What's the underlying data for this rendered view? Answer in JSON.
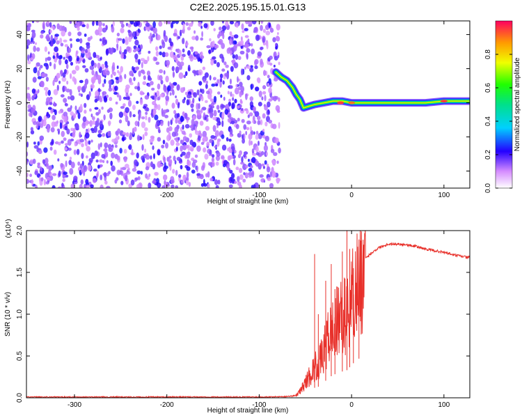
{
  "title": "C2E2.2025.195.15.01.G13",
  "colorbar": {
    "label": "Normalized spectral amplitude",
    "ticks": [
      "0.0",
      "0.2",
      "0.4",
      "0.6",
      "0.8"
    ]
  },
  "chart_data": [
    {
      "type": "heatmap",
      "xlabel": "Height of straight line (km)",
      "ylabel": "Frequency (Hz)",
      "xlim": [
        -352,
        128
      ],
      "ylim": [
        -50,
        48
      ],
      "xticks": [
        "-300",
        "-200",
        "-100",
        "0",
        "100"
      ],
      "yticks": [
        "-40",
        "-20",
        "0",
        "20",
        "40"
      ],
      "noise_region_x": [
        -352,
        -78
      ],
      "ridge": {
        "x": [
          -82,
          -76,
          -70,
          -64,
          -60,
          -56,
          -52,
          -46,
          -40,
          -30,
          -20,
          -10,
          0,
          20,
          40,
          60,
          80,
          100,
          128
        ],
        "y": [
          18,
          15,
          13,
          9,
          5,
          2,
          -3,
          -2,
          -1,
          0,
          1,
          1,
          0,
          0,
          0,
          0,
          0,
          1,
          1
        ]
      },
      "ridge_peaks": [
        {
          "x": -12,
          "y": 0,
          "v": 0.95
        },
        {
          "x": 0,
          "y": 0,
          "v": 0.9
        },
        {
          "x": 100,
          "y": 1,
          "v": 0.95
        }
      ]
    },
    {
      "type": "line",
      "xlabel": "Height of straight line (km)",
      "ylabel": "SNR (10 * v/v)",
      "scale_label": "(x10⁴)",
      "xlim": [
        -352,
        128
      ],
      "ylim": [
        0,
        2.0
      ],
      "xticks": [
        "-300",
        "-200",
        "-100",
        "0",
        "100"
      ],
      "yticks": [
        "0.0",
        "0.5",
        "1.0",
        "1.5",
        "2.0"
      ],
      "color": "#e8302a",
      "series": [
        {
          "x": [
            -352,
            -300,
            -200,
            -100,
            -70,
            -60,
            -55,
            -50,
            -45,
            -40,
            -35,
            -30,
            -25,
            -20,
            -15,
            -10,
            -5,
            0,
            5,
            10,
            20,
            30,
            40,
            50,
            60,
            70,
            80,
            90,
            100,
            110,
            120,
            128
          ],
          "y": [
            0.01,
            0.01,
            0.01,
            0.01,
            0.015,
            0.03,
            0.1,
            0.2,
            0.3,
            0.4,
            0.45,
            0.6,
            0.8,
            0.9,
            1.0,
            1.05,
            1.1,
            1.3,
            1.5,
            1.6,
            1.72,
            1.8,
            1.84,
            1.84,
            1.83,
            1.81,
            1.78,
            1.76,
            1.74,
            1.71,
            1.69,
            1.68
          ]
        }
      ],
      "spikes": [
        {
          "x": -40,
          "y": 1.72
        },
        {
          "x": -36,
          "y": 1.0
        },
        {
          "x": -28,
          "y": 1.4
        },
        {
          "x": -22,
          "y": 1.6
        },
        {
          "x": -18,
          "y": 1.3
        },
        {
          "x": -10,
          "y": 1.75
        },
        {
          "x": -5,
          "y": 2.0
        },
        {
          "x": -2,
          "y": 1.78
        },
        {
          "x": 2,
          "y": 1.55
        },
        {
          "x": 8,
          "y": 1.5
        }
      ]
    }
  ]
}
